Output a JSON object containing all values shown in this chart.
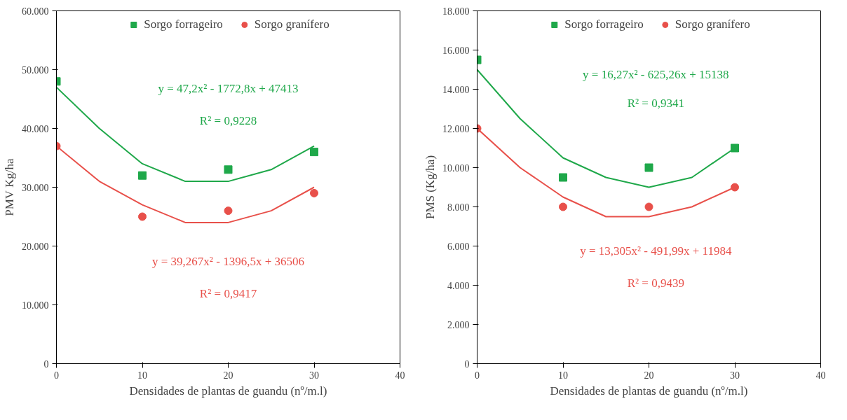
{
  "chart_data": [
    {
      "type": "scatter",
      "xlabel": "Densidades de plantas de guandu (nº/m.l)",
      "ylabel": "PMV Kg/ha",
      "xlim": [
        0,
        40
      ],
      "xticks": [
        0,
        10,
        20,
        30,
        40
      ],
      "ylim": [
        0,
        60000
      ],
      "yticks": [
        {
          "value": 0,
          "label": "0"
        },
        {
          "value": 10000,
          "label": "10.000"
        },
        {
          "value": 20000,
          "label": "20.000"
        },
        {
          "value": 30000,
          "label": "30.000"
        },
        {
          "value": 40000,
          "label": "40.000"
        },
        {
          "value": 50000,
          "label": "50.000"
        },
        {
          "value": 60000,
          "label": "60.000"
        }
      ],
      "grid": false,
      "legend": "top",
      "series": [
        {
          "name": "Sorgo forrageiro",
          "marker": "square",
          "color": "#1fa84a",
          "x": [
            0,
            10,
            20,
            30
          ],
          "values": [
            48000,
            32000,
            33000,
            36000
          ]
        },
        {
          "name": "Sorgo granífero",
          "marker": "circle",
          "color": "#e8504a",
          "x": [
            0,
            10,
            20,
            30
          ],
          "values": [
            37000,
            25000,
            26000,
            29000
          ]
        },
        {
          "type": "line",
          "color": "#1fa84a",
          "x": [
            0,
            5,
            10,
            15,
            20,
            25,
            30
          ],
          "values": [
            47000,
            40000,
            34000,
            31000,
            31000,
            33000,
            37000
          ]
        },
        {
          "type": "line",
          "color": "#e8504a",
          "x": [
            0,
            5,
            10,
            15,
            20,
            25,
            30
          ],
          "values": [
            37000,
            31000,
            27000,
            24000,
            24000,
            26000,
            30000
          ]
        }
      ],
      "annotations": [
        "y = 47,2x² - 1772,8x + 47413",
        "R² = 0,9228",
        "y = 39,267x² - 1396,5x + 36506",
        "R² = 0,9417"
      ]
    },
    {
      "type": "scatter",
      "xlabel": "Densidades de plantas de guandu (nº/m.l)",
      "ylabel": "PMS (Kg/ha)",
      "xlim": [
        0,
        40
      ],
      "xticks": [
        0,
        10,
        20,
        30,
        40
      ],
      "ylim": [
        0,
        18000
      ],
      "yticks": [
        {
          "value": 0,
          "label": "0"
        },
        {
          "value": 2000,
          "label": "2.000"
        },
        {
          "value": 4000,
          "label": "4.000"
        },
        {
          "value": 6000,
          "label": "6.000"
        },
        {
          "value": 8000,
          "label": "8.000"
        },
        {
          "value": 10000,
          "label": "10.000"
        },
        {
          "value": 12000,
          "label": "12.000"
        },
        {
          "value": 14000,
          "label": "14.000"
        },
        {
          "value": 16000,
          "label": "16.000"
        },
        {
          "value": 18000,
          "label": "18.000"
        }
      ],
      "grid": false,
      "legend": "top",
      "series": [
        {
          "name": "Sorgo forrageiro",
          "marker": "square",
          "color": "#1fa84a",
          "x": [
            0,
            10,
            20,
            30
          ],
          "values": [
            15500,
            9500,
            10000,
            11000
          ]
        },
        {
          "name": "Sorgo granífero",
          "marker": "circle",
          "color": "#e8504a",
          "x": [
            0,
            10,
            20,
            30
          ],
          "values": [
            12000,
            8000,
            8000,
            9000
          ]
        },
        {
          "type": "line",
          "color": "#1fa84a",
          "x": [
            0,
            5,
            10,
            15,
            20,
            25,
            30
          ],
          "values": [
            15000,
            12500,
            10500,
            9500,
            9000,
            9500,
            11000
          ]
        },
        {
          "type": "line",
          "color": "#e8504a",
          "x": [
            0,
            5,
            10,
            15,
            20,
            25,
            30
          ],
          "values": [
            12000,
            10000,
            8500,
            7500,
            7500,
            8000,
            9000
          ]
        }
      ],
      "annotations": [
        "y = 16,27x² - 625,26x + 15138",
        "R² = 0,9341",
        "y = 13,305x² - 491,99x + 11984",
        "R² = 0,9439"
      ]
    }
  ]
}
